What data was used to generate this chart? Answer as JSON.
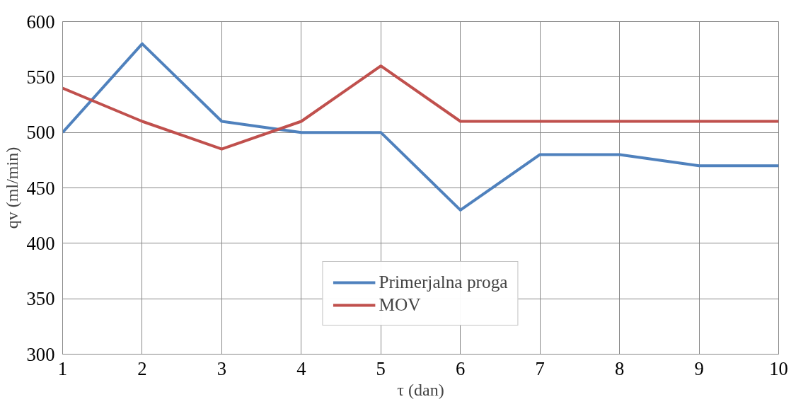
{
  "chart_data": {
    "type": "line",
    "xlabel": "τ (dan)",
    "ylabel": "qv (ml/min)",
    "x": [
      1,
      2,
      3,
      4,
      5,
      6,
      7,
      8,
      9,
      10
    ],
    "series": [
      {
        "name": "Primerjalna proga",
        "color": "#4f81bd",
        "values": [
          500,
          580,
          510,
          500,
          500,
          430,
          480,
          480,
          470,
          470
        ]
      },
      {
        "name": "MOV",
        "color": "#c0504d",
        "values": [
          540,
          510,
          485,
          510,
          560,
          510,
          510,
          510,
          510,
          510
        ]
      }
    ],
    "xlim": [
      1,
      10
    ],
    "xticks": [
      1,
      2,
      3,
      4,
      5,
      6,
      7,
      8,
      9,
      10
    ],
    "ylim": [
      300,
      600
    ],
    "yticks": [
      300,
      350,
      400,
      450,
      500,
      550,
      600
    ],
    "grid": true,
    "legend": "bottom",
    "marker": "none",
    "line_style": "solid"
  }
}
